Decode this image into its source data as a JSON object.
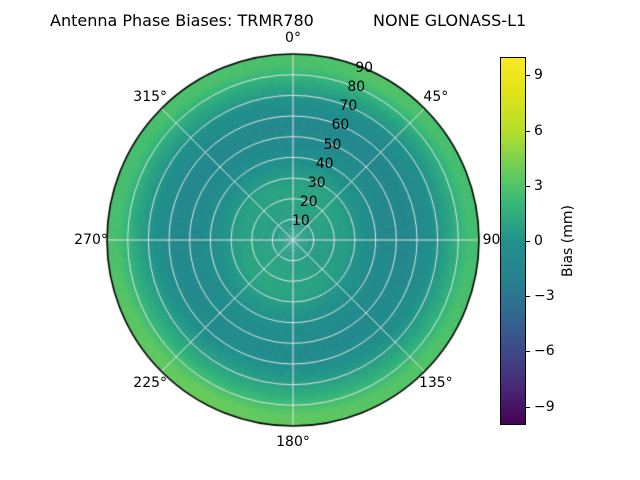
{
  "title": {
    "left": "Antenna Phase Biases: TRMR780",
    "right": "NONE GLONASS-L1"
  },
  "colors": {
    "background": "#ffffff",
    "grid": "#e2e2e2",
    "outline": "#000000",
    "text": "#000000"
  },
  "chart_data": {
    "type": "heatmap",
    "projection": "polar",
    "theta_zero_location": "top",
    "theta_direction": "clockwise",
    "theta_ticks_deg": [
      0,
      45,
      90,
      135,
      180,
      225,
      270,
      315
    ],
    "theta_tick_labels": [
      "0°",
      "45°",
      "90°",
      "135°",
      "180°",
      "225°",
      "270°",
      "315°"
    ],
    "r_ticks": [
      10,
      20,
      30,
      40,
      50,
      60,
      70,
      80,
      90
    ],
    "r_tick_labels": [
      "10",
      "20",
      "30",
      "40",
      "50",
      "60",
      "70",
      "80",
      "90"
    ],
    "r_max": 90,
    "r_label_angle_deg": 22.5,
    "colorbar": {
      "label": "Bias (mm)",
      "tick_values": [
        9,
        6,
        3,
        0,
        -3,
        -6,
        -9
      ],
      "tick_labels": [
        "9",
        "6",
        "3",
        "0",
        "−3",
        "−6",
        "−9"
      ],
      "vmin": -10,
      "vmax": 10,
      "colormap": "viridis",
      "colormap_stops": [
        [
          0.0,
          "#440154"
        ],
        [
          0.1,
          "#482878"
        ],
        [
          0.2,
          "#3e4a89"
        ],
        [
          0.3,
          "#31688e"
        ],
        [
          0.4,
          "#26828e"
        ],
        [
          0.5,
          "#21918c"
        ],
        [
          0.6,
          "#35b779"
        ],
        [
          0.7,
          "#6ece58"
        ],
        [
          0.8,
          "#b5de2b"
        ],
        [
          0.9,
          "#dfe318"
        ],
        [
          1.0,
          "#fde725"
        ]
      ]
    },
    "series_angles_deg": [
      0,
      30,
      60,
      90,
      120,
      150,
      180,
      210,
      240,
      270,
      300,
      330
    ],
    "series_radii": [
      5,
      15,
      25,
      35,
      45,
      55,
      65,
      75,
      85
    ],
    "values_unit": "mm",
    "values": [
      [
        0.5,
        0.8,
        1.0,
        0.2,
        -0.8,
        -1.0,
        -0.3,
        1.2,
        2.8
      ],
      [
        0.5,
        0.9,
        1.2,
        0.3,
        -0.6,
        -1.2,
        -0.5,
        1.0,
        3.0
      ],
      [
        0.6,
        1.0,
        0.8,
        0.0,
        -0.9,
        -1.4,
        -0.6,
        0.8,
        2.6
      ],
      [
        0.5,
        0.7,
        0.6,
        -0.2,
        -1.1,
        -1.3,
        -0.4,
        0.9,
        2.5
      ],
      [
        0.4,
        0.6,
        0.7,
        0.0,
        -0.8,
        -1.0,
        -0.2,
        1.1,
        2.8
      ],
      [
        0.5,
        0.8,
        0.9,
        0.1,
        -0.7,
        -0.9,
        0.0,
        1.3,
        3.2
      ],
      [
        0.5,
        0.9,
        1.1,
        0.3,
        -0.5,
        -0.8,
        0.2,
        1.5,
        3.5
      ],
      [
        0.6,
        1.0,
        1.2,
        0.4,
        -0.4,
        -0.7,
        0.3,
        1.6,
        3.8
      ],
      [
        0.6,
        1.1,
        1.0,
        0.2,
        -0.6,
        -0.9,
        0.1,
        1.4,
        3.3
      ],
      [
        0.5,
        0.9,
        0.8,
        0.0,
        -0.8,
        -1.1,
        -0.2,
        1.0,
        2.7
      ],
      [
        0.5,
        0.8,
        0.9,
        0.1,
        -0.7,
        -1.2,
        -0.4,
        0.9,
        2.6
      ],
      [
        0.5,
        0.8,
        1.0,
        0.2,
        -0.8,
        -1.1,
        -0.3,
        1.0,
        2.8
      ]
    ]
  }
}
